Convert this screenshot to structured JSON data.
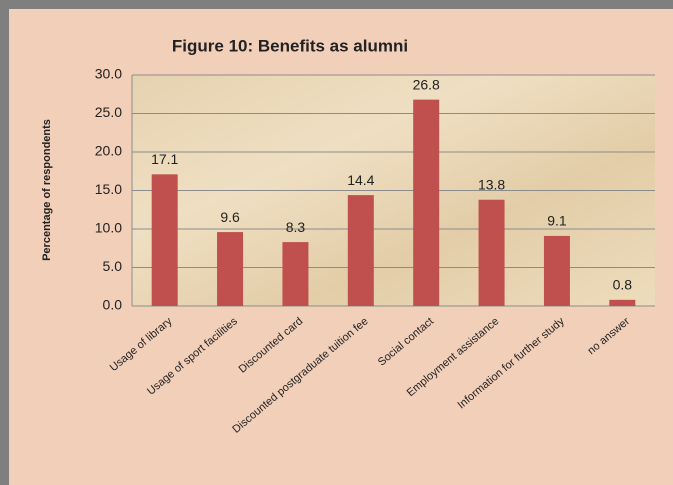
{
  "chart_data": {
    "type": "bar",
    "title": "Figure 10: Benefits as alumni",
    "y_label": "Percentage of respondents",
    "categories": [
      "Usage of library",
      "Usage of sport facilities",
      "Discounted card",
      "Discounted postgraduate tuition fee",
      "Social contact",
      "Employment assistance",
      "Information for further study",
      "no answer"
    ],
    "values": [
      17.1,
      9.6,
      8.3,
      14.4,
      26.8,
      13.8,
      9.1,
      0.8
    ],
    "value_labels": [
      "17.1",
      "9.6",
      "8.3",
      "14.4",
      "26.8",
      "13.8",
      "9.1",
      "0.8"
    ],
    "color": "#c0504d",
    "ylim": [
      0,
      30
    ],
    "yticks": [
      {
        "value": 0,
        "label": "0.0"
      },
      {
        "value": 5,
        "label": "5.0"
      },
      {
        "value": 10,
        "label": "10.0"
      },
      {
        "value": 15,
        "label": "15.0"
      },
      {
        "value": 20,
        "label": "20.0"
      },
      {
        "value": 25,
        "label": "25.0"
      },
      {
        "value": 30,
        "label": "30.0"
      }
    ],
    "grid": true
  }
}
